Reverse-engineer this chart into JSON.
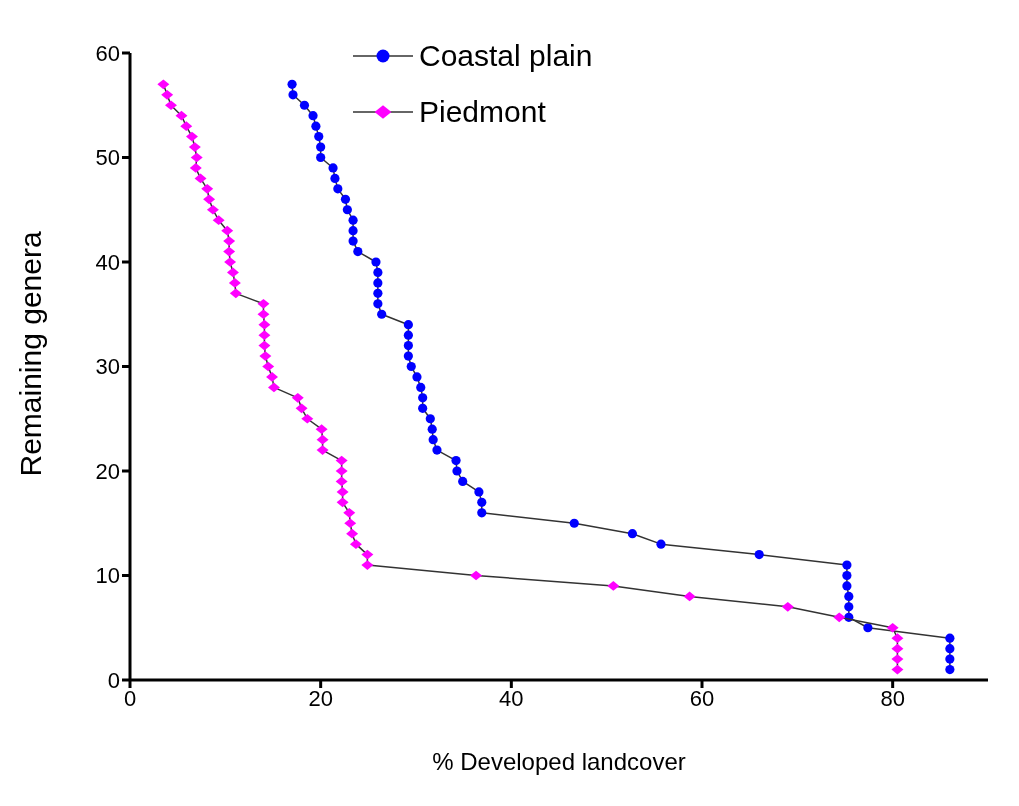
{
  "chart_data": {
    "type": "line",
    "xlabel": "% Developed landcover",
    "ylabel": "Remaining genera",
    "xlim": [
      0,
      90
    ],
    "xticks": [
      0,
      20,
      40,
      60,
      80
    ],
    "ylim": [
      0,
      60
    ],
    "yticks": [
      0,
      10,
      20,
      30,
      40,
      50,
      60
    ],
    "grid": false,
    "legend": "top",
    "series": [
      {
        "name": "Coastal plain",
        "color": "#0000ff",
        "marker": "circle",
        "x": [
          17.0,
          17.1,
          18.3,
          19.2,
          19.5,
          19.8,
          20.0,
          20.0,
          21.3,
          21.5,
          21.8,
          22.6,
          22.8,
          23.4,
          23.4,
          23.4,
          23.9,
          25.8,
          26.0,
          26.0,
          26.0,
          26.0,
          26.4,
          29.2,
          29.2,
          29.2,
          29.2,
          29.5,
          30.1,
          30.5,
          30.7,
          30.7,
          31.5,
          31.7,
          31.8,
          32.2,
          34.2,
          34.3,
          34.9,
          36.6,
          36.9,
          36.9,
          46.6,
          52.7,
          55.7,
          66.0,
          75.2,
          75.2,
          75.2,
          75.4,
          75.4,
          75.4,
          77.4,
          86.0,
          86.0,
          86.0,
          86.0
        ],
        "values": [
          57,
          56,
          55,
          54,
          53,
          52,
          51,
          50,
          49,
          48,
          47,
          46,
          45,
          44,
          43,
          42,
          41,
          40,
          39,
          38,
          37,
          36,
          35,
          34,
          33,
          32,
          31,
          30,
          29,
          28,
          27,
          26,
          25,
          24,
          23,
          22,
          21,
          20,
          19,
          18,
          17,
          16,
          15,
          14,
          13,
          12,
          11,
          10,
          9,
          8,
          7,
          6,
          5,
          4,
          3,
          2,
          1
        ]
      },
      {
        "name": "Piedmont",
        "color": "#ff00ff",
        "marker": "diamond",
        "x": [
          3.5,
          3.9,
          4.3,
          5.4,
          5.9,
          6.5,
          6.8,
          7.0,
          6.9,
          7.4,
          8.1,
          8.3,
          8.7,
          9.3,
          10.2,
          10.4,
          10.4,
          10.5,
          10.8,
          11.0,
          11.1,
          14.0,
          14.0,
          14.1,
          14.1,
          14.1,
          14.2,
          14.5,
          14.9,
          15.1,
          17.6,
          18.0,
          18.6,
          20.1,
          20.2,
          20.2,
          22.2,
          22.2,
          22.2,
          22.3,
          22.3,
          23.0,
          23.1,
          23.3,
          23.7,
          24.9,
          24.9,
          36.3,
          50.7,
          58.7,
          69.0,
          74.4,
          80.0,
          80.5,
          80.5,
          80.5,
          80.5
        ],
        "values": [
          57,
          56,
          55,
          54,
          53,
          52,
          51,
          50,
          49,
          48,
          47,
          46,
          45,
          44,
          43,
          42,
          41,
          40,
          39,
          38,
          37,
          36,
          35,
          34,
          33,
          32,
          31,
          30,
          29,
          28,
          27,
          26,
          25,
          24,
          23,
          22,
          21,
          20,
          19,
          18,
          17,
          16,
          15,
          14,
          13,
          12,
          11,
          10,
          9,
          8,
          7,
          6,
          5,
          4,
          3,
          2,
          1
        ]
      }
    ]
  }
}
